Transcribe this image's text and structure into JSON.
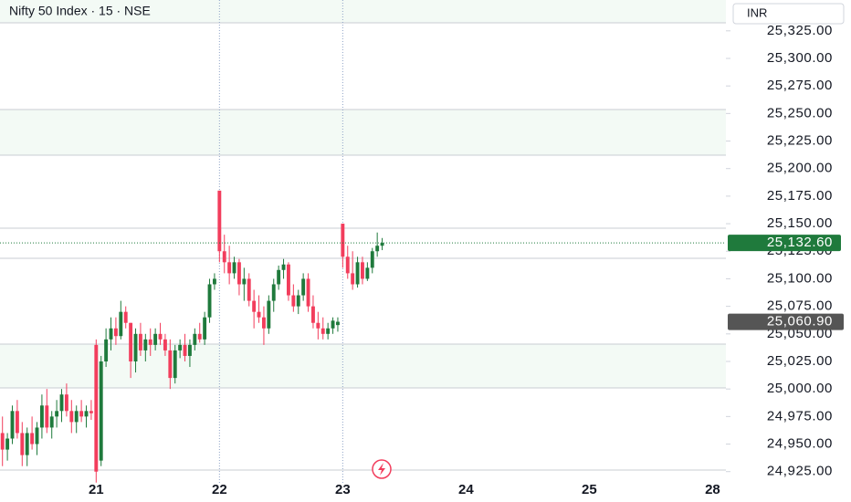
{
  "chart_data": {
    "type": "candlestick",
    "title": "Nifty 50 Index · 15 · NSE",
    "currency": "INR",
    "x": [
      0,
      1,
      2,
      3,
      4,
      5,
      6,
      7,
      8,
      9,
      10,
      11,
      12,
      13,
      14,
      15,
      16,
      17,
      18,
      19,
      20,
      21,
      22,
      23,
      24,
      25,
      26,
      27,
      28,
      29,
      30,
      31,
      32,
      33,
      34,
      35,
      36,
      37,
      38,
      39,
      40,
      41,
      42,
      43,
      44,
      45,
      46,
      47,
      48,
      49,
      50,
      51,
      52,
      53,
      54,
      55,
      56,
      57,
      58,
      59,
      60,
      61,
      62,
      63,
      64,
      65,
      66,
      67,
      68,
      69,
      70,
      71,
      72,
      73,
      74,
      75,
      76,
      77
    ],
    "open": [
      24960,
      24945,
      24955,
      24980,
      24960,
      24940,
      24960,
      24950,
      24965,
      24985,
      24965,
      24975,
      24980,
      24995,
      24980,
      24970,
      24980,
      24975,
      24980,
      25040,
      24935,
      25025,
      25045,
      25055,
      25048,
      25070,
      25060,
      25025,
      25050,
      25035,
      25045,
      25040,
      25050,
      25045,
      25035,
      25010,
      25035,
      25040,
      25030,
      25040,
      25050,
      25045,
      25065,
      25095,
      25180,
      25125,
      25115,
      25105,
      25115,
      25095,
      25100,
      25080,
      25070,
      25065,
      25055,
      25080,
      25095,
      25108,
      25113,
      25085,
      25075,
      25085,
      25100,
      25075,
      25060,
      25055,
      25050,
      25055,
      25058,
      25150,
      25120,
      25105,
      25095,
      25115,
      25100,
      25110,
      25125,
      25130
    ],
    "high": [
      24975,
      24960,
      24985,
      24990,
      24970,
      24965,
      24975,
      24970,
      24995,
      25000,
      24980,
      24990,
      25000,
      25005,
      24990,
      24985,
      24990,
      24985,
      24990,
      25045,
      25030,
      25055,
      25065,
      25065,
      25080,
      25075,
      25060,
      25055,
      25060,
      25050,
      25055,
      25055,
      25060,
      25050,
      25045,
      25040,
      25045,
      25050,
      25045,
      25055,
      25060,
      25070,
      25100,
      25105,
      25180,
      25140,
      25130,
      25120,
      25118,
      25110,
      25105,
      25090,
      25085,
      25075,
      25085,
      25100,
      25112,
      25118,
      25115,
      25095,
      25090,
      25105,
      25105,
      25085,
      25070,
      25065,
      25060,
      25065,
      25065,
      25150,
      25130,
      25125,
      25120,
      25120,
      25115,
      25128,
      25142,
      25137
    ],
    "low": [
      24930,
      24935,
      24950,
      24955,
      24930,
      24930,
      24945,
      24940,
      24955,
      24960,
      24955,
      24965,
      24970,
      24975,
      24960,
      24960,
      24970,
      24965,
      24972,
      24915,
      24930,
      25020,
      25035,
      25040,
      25045,
      25055,
      25010,
      25015,
      25030,
      25025,
      25030,
      25035,
      25040,
      25030,
      25000,
      25005,
      25028,
      25025,
      25020,
      25035,
      25042,
      25040,
      25060,
      25090,
      25115,
      25105,
      25095,
      25100,
      25085,
      25080,
      25075,
      25055,
      25060,
      25040,
      25050,
      25070,
      25090,
      25100,
      25080,
      25070,
      25068,
      25080,
      25070,
      25055,
      25045,
      25045,
      25045,
      25050,
      25052,
      25110,
      25100,
      25090,
      25092,
      25095,
      25098,
      25105,
      25120,
      25126
    ],
    "close": [
      24945,
      24955,
      24980,
      24960,
      24940,
      24960,
      24950,
      24965,
      24985,
      24965,
      24975,
      24980,
      24995,
      24980,
      24970,
      24980,
      24975,
      24980,
      24978,
      24925,
      25025,
      25045,
      25055,
      25048,
      25070,
      25060,
      25025,
      25050,
      25035,
      25045,
      25040,
      25050,
      25045,
      25035,
      25010,
      25035,
      25040,
      25030,
      25040,
      25050,
      25045,
      25065,
      25095,
      25100,
      25125,
      25115,
      25105,
      25115,
      25095,
      25100,
      25080,
      25070,
      25065,
      25055,
      25080,
      25095,
      25108,
      25113,
      25085,
      25075,
      25085,
      25100,
      25075,
      25060,
      25055,
      25050,
      25055,
      25062,
      25061,
      25120,
      25105,
      25095,
      25115,
      25100,
      25110,
      25125,
      25130,
      25132.6
    ],
    "up_color": "#1f7a3c",
    "down_color": "#f23d5c",
    "last_price": {
      "value": 25132.6,
      "label": "25,132.60"
    },
    "prev_close": {
      "value": 25060.9,
      "label": "25,060.90"
    },
    "xlim": [
      -0.5,
      146.7
    ],
    "xticks": [
      {
        "value": 19,
        "label": "21"
      },
      {
        "value": 44,
        "label": "22"
      },
      {
        "value": 69,
        "label": "23"
      },
      {
        "value": 94,
        "label": "24"
      },
      {
        "value": 119,
        "label": "25"
      },
      {
        "value": 144,
        "label": "28"
      }
    ],
    "ylim": [
      24914,
      25353
    ],
    "yticks": [
      {
        "value": 24925,
        "label": "24,925.00"
      },
      {
        "value": 24950,
        "label": "24,950.00"
      },
      {
        "value": 24975,
        "label": "24,975.00"
      },
      {
        "value": 25000,
        "label": "25,000.00"
      },
      {
        "value": 25025,
        "label": "25,025.00"
      },
      {
        "value": 25050,
        "label": "25,050.00"
      },
      {
        "value": 25075,
        "label": "25,075.00"
      },
      {
        "value": 25100,
        "label": "25,100.00"
      },
      {
        "value": 25125,
        "label": "25,125.00"
      },
      {
        "value": 25150,
        "label": "25,150.00"
      },
      {
        "value": 25175,
        "label": "25,175.00"
      },
      {
        "value": 25200,
        "label": "25,200.00"
      },
      {
        "value": 25225,
        "label": "25,225.00"
      },
      {
        "value": 25250,
        "label": "25,250.00"
      },
      {
        "value": 25275,
        "label": "25,275.00"
      },
      {
        "value": 25300,
        "label": "25,300.00"
      },
      {
        "value": 25325,
        "label": "25,325.00"
      }
    ]
  }
}
